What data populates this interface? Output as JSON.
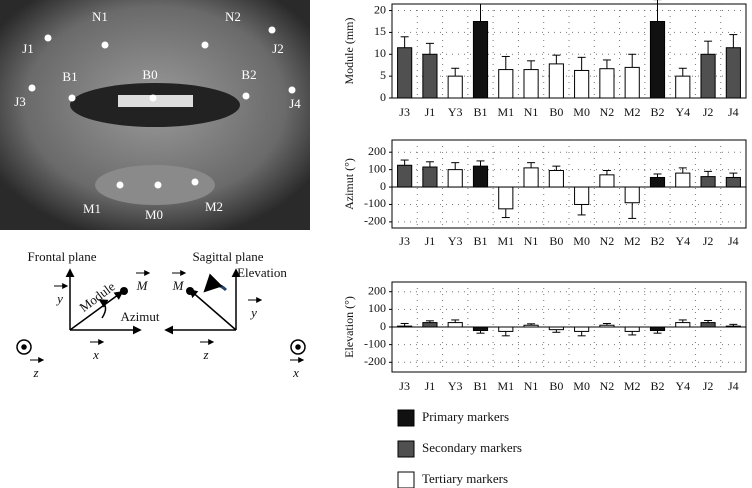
{
  "photo": {
    "labels": [
      "N1",
      "N2",
      "J1",
      "J2",
      "B1",
      "B0",
      "B2",
      "J3",
      "J4",
      "M1",
      "M0",
      "M2"
    ]
  },
  "diagram": {
    "frontal": "Frontal plane",
    "sagittal": "Sagittal plane",
    "elevation": "Elevation",
    "module": "Module",
    "azimut": "Azimut",
    "m1": "M",
    "m2": "M",
    "y1": "y",
    "x1": "x",
    "z1": "z",
    "y2": "y",
    "z2": "z",
    "x2": "x"
  },
  "chart_data": [
    {
      "type": "bar",
      "y_label": "Module (mm)",
      "categories": [
        "J3",
        "J1",
        "Y3",
        "B1",
        "M1",
        "N1",
        "B0",
        "M0",
        "N2",
        "M2",
        "B2",
        "Y4",
        "J2",
        "J4"
      ],
      "values": [
        11.5,
        10,
        5,
        17.5,
        6.5,
        6.5,
        7.8,
        6.3,
        6.7,
        7,
        17.5,
        5,
        10,
        11.5
      ],
      "errors": [
        2.5,
        2.5,
        1.8,
        4,
        3,
        2,
        2,
        3,
        2,
        3,
        5,
        1.8,
        3,
        3
      ],
      "colors": [
        "#505050",
        "#505050",
        "#ffffff",
        "#111111",
        "#ffffff",
        "#ffffff",
        "#ffffff",
        "#ffffff",
        "#ffffff",
        "#ffffff",
        "#111111",
        "#ffffff",
        "#505050",
        "#505050"
      ],
      "ylim": [
        0,
        21.5
      ],
      "yticks": [
        0,
        5,
        10,
        15,
        20
      ],
      "grid": true
    },
    {
      "type": "bar",
      "y_label": "Azimut (°)",
      "categories": [
        "J3",
        "J1",
        "Y3",
        "B1",
        "M1",
        "N1",
        "B0",
        "M0",
        "N2",
        "M2",
        "B2",
        "Y4",
        "J2",
        "J4"
      ],
      "values": [
        125,
        115,
        100,
        120,
        -125,
        110,
        95,
        -100,
        70,
        -90,
        55,
        80,
        60,
        55
      ],
      "errors": [
        30,
        30,
        40,
        30,
        50,
        30,
        25,
        60,
        25,
        90,
        20,
        30,
        30,
        25
      ],
      "colors": [
        "#505050",
        "#505050",
        "#ffffff",
        "#111111",
        "#ffffff",
        "#ffffff",
        "#ffffff",
        "#ffffff",
        "#ffffff",
        "#ffffff",
        "#111111",
        "#ffffff",
        "#505050",
        "#505050"
      ],
      "ylim": [
        -235,
        270
      ],
      "yticks": [
        -200,
        -100,
        0,
        100,
        200
      ],
      "grid": true
    },
    {
      "type": "bar",
      "y_label": "Elevation (°)",
      "categories": [
        "J3",
        "J1",
        "Y3",
        "B1",
        "M1",
        "N1",
        "B0",
        "M0",
        "N2",
        "M2",
        "B2",
        "Y4",
        "J2",
        "J4"
      ],
      "values": [
        5,
        25,
        25,
        -20,
        -25,
        10,
        -15,
        -25,
        10,
        -25,
        -20,
        25,
        25,
        5
      ],
      "errors": [
        15,
        10,
        15,
        15,
        25,
        8,
        15,
        25,
        10,
        20,
        15,
        15,
        12,
        10
      ],
      "colors": [
        "#505050",
        "#505050",
        "#ffffff",
        "#111111",
        "#ffffff",
        "#ffffff",
        "#ffffff",
        "#ffffff",
        "#ffffff",
        "#ffffff",
        "#111111",
        "#ffffff",
        "#505050",
        "#505050"
      ],
      "ylim": [
        -255,
        255
      ],
      "yticks": [
        -200,
        -100,
        0,
        100,
        200
      ],
      "grid": true
    }
  ],
  "legend": {
    "items": [
      {
        "name": "Primary markers",
        "color": "#111111"
      },
      {
        "name": "Secondary markers",
        "color": "#505050"
      },
      {
        "name": "Tertiary markers",
        "color": "#ffffff"
      }
    ]
  }
}
